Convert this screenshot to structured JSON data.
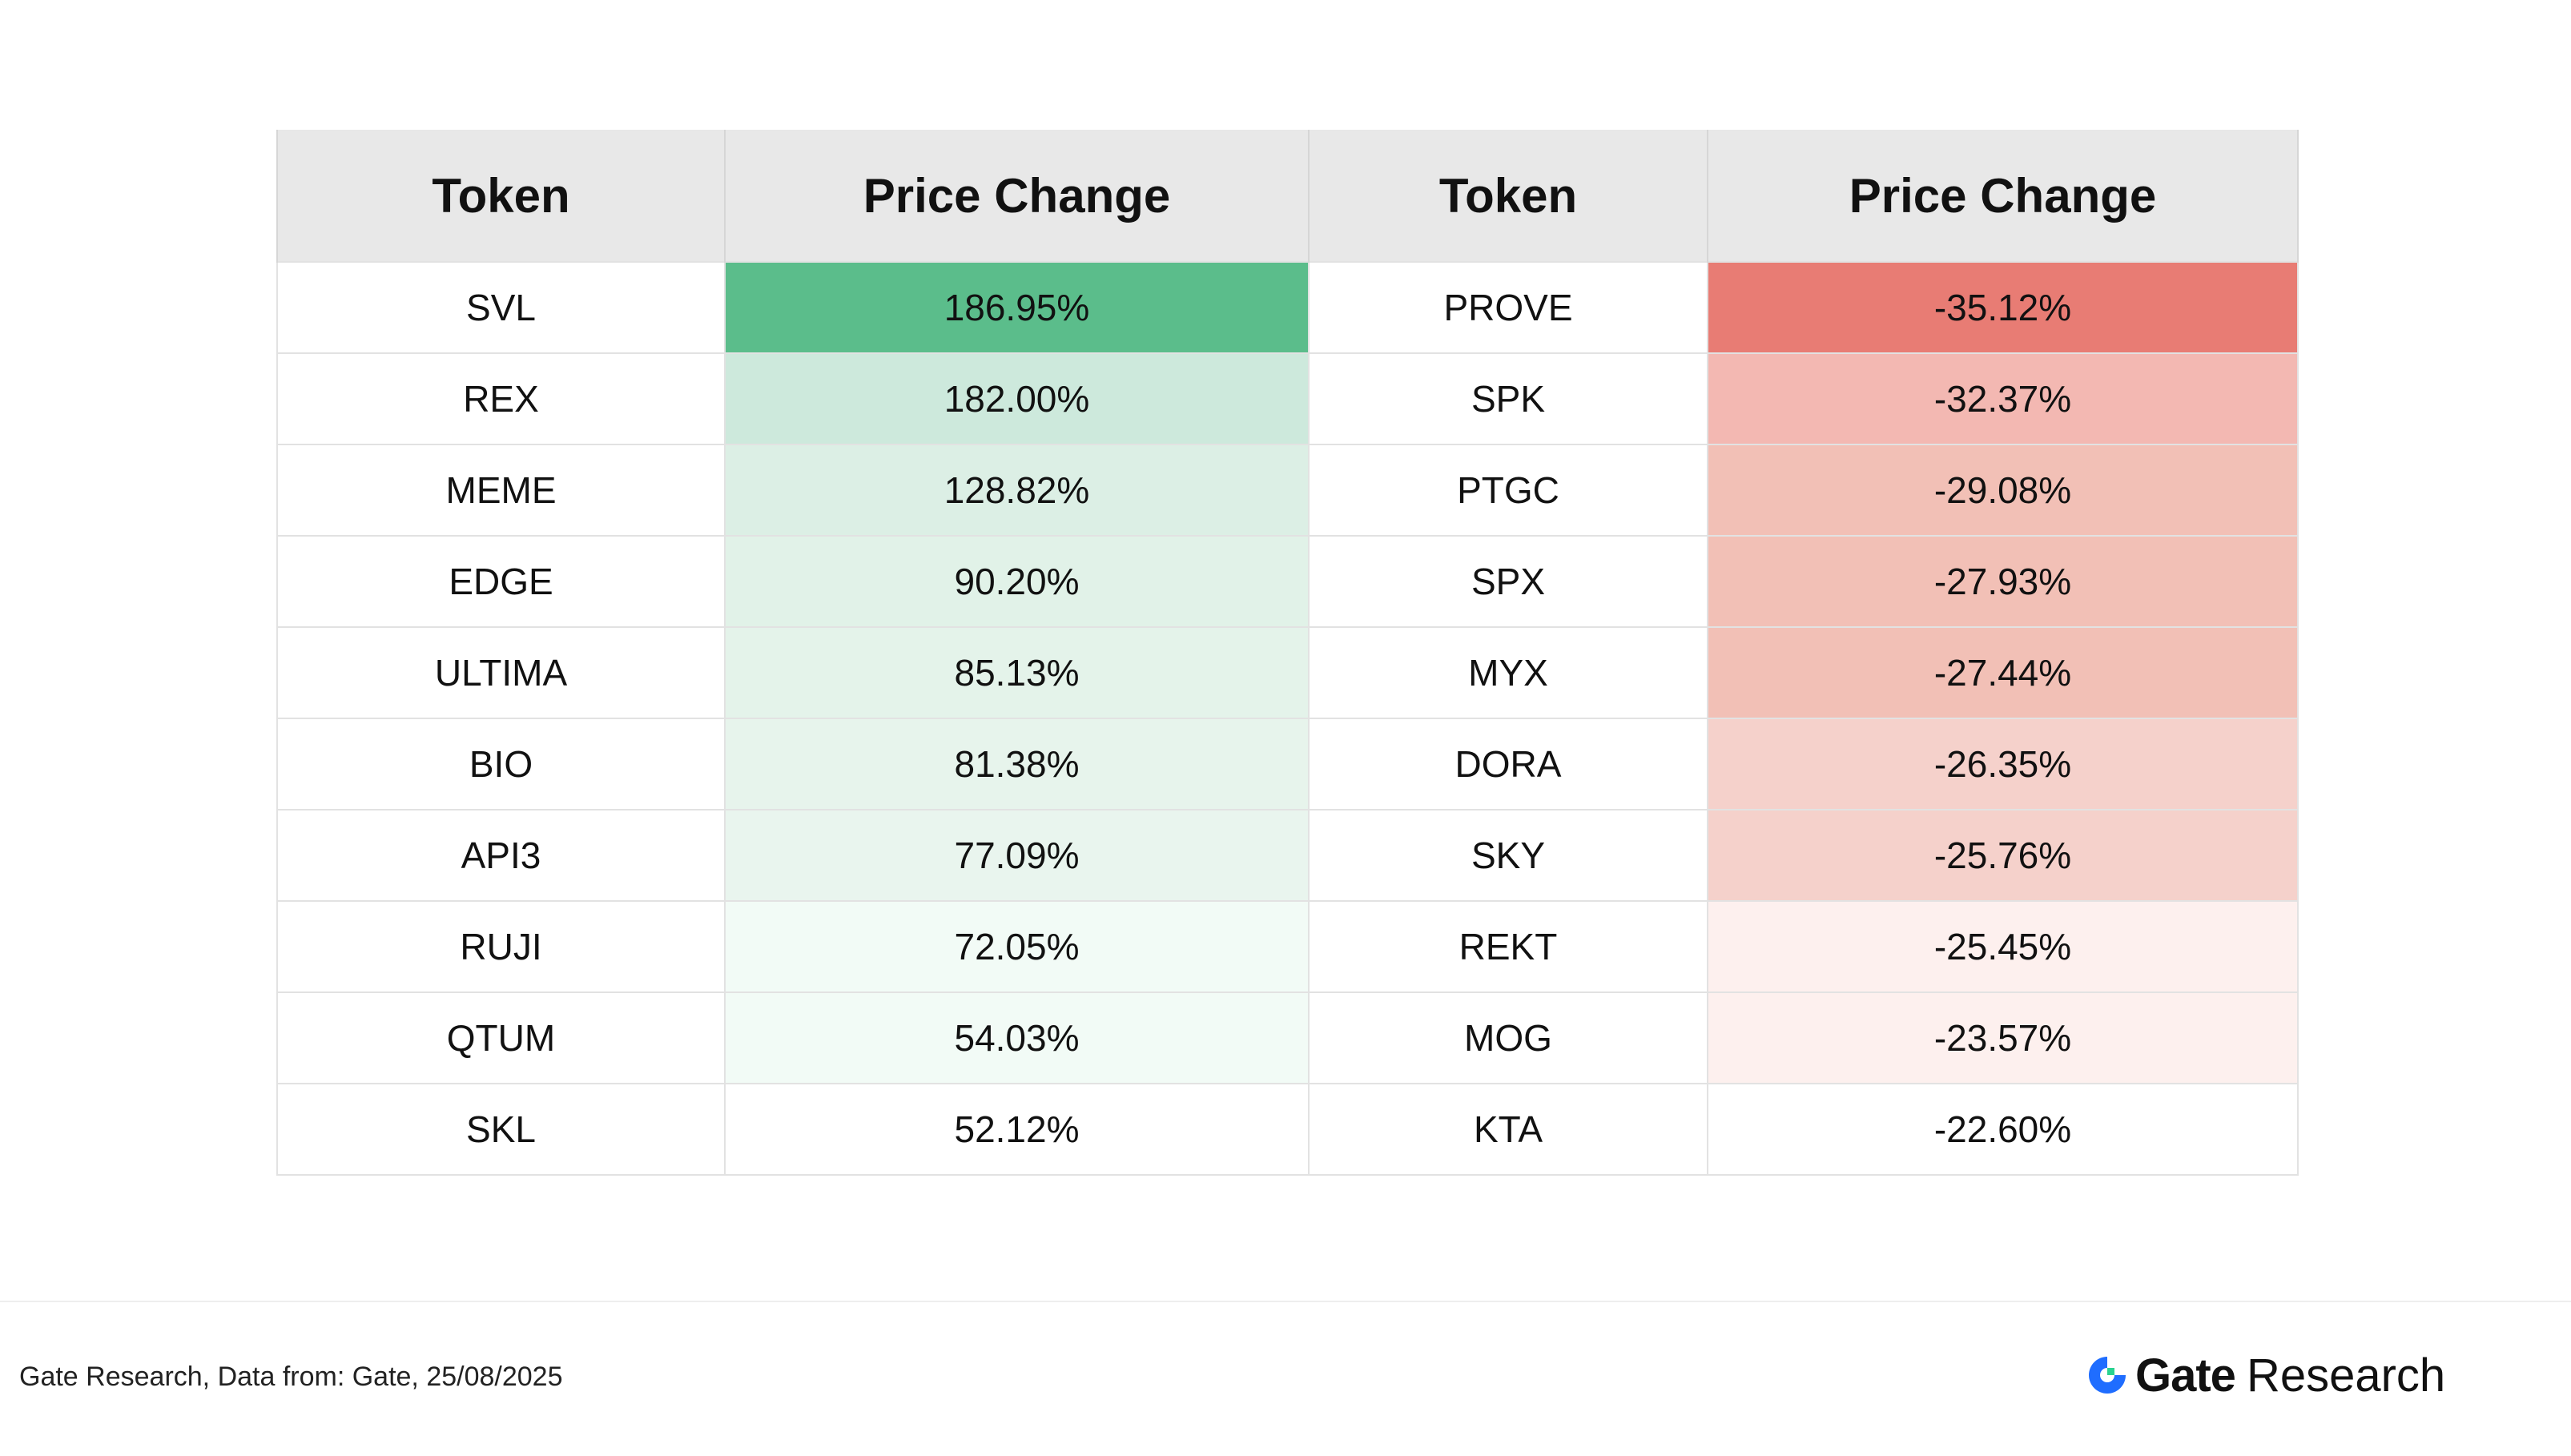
{
  "table": {
    "headers": [
      "Token",
      "Price Change",
      "Token",
      "Price Change"
    ],
    "gainers": [
      {
        "token": "SVL",
        "change": "186.95%",
        "fill": "#5bbd8b"
      },
      {
        "token": "REX",
        "change": "182.00%",
        "fill": "#cde9dc"
      },
      {
        "token": "MEME",
        "change": "128.82%",
        "fill": "#dcefe5"
      },
      {
        "token": "EDGE",
        "change": "90.20%",
        "fill": "#e1f2e8"
      },
      {
        "token": "ULTIMA",
        "change": "85.13%",
        "fill": "#e4f3ea"
      },
      {
        "token": "BIO",
        "change": "81.38%",
        "fill": "#e7f4ec"
      },
      {
        "token": "API3",
        "change": "77.09%",
        "fill": "#e9f5ee"
      },
      {
        "token": "RUJI",
        "change": "72.05%",
        "fill": "#f2fbf6"
      },
      {
        "token": "QTUM",
        "change": "54.03%",
        "fill": "#f2fbf6"
      },
      {
        "token": "SKL",
        "change": "52.12%",
        "fill": "#ffffff"
      }
    ],
    "losers": [
      {
        "token": "PROVE",
        "change": "-35.12%",
        "fill": "#e87c74"
      },
      {
        "token": "SPK",
        "change": "-32.37%",
        "fill": "#f3b8b2"
      },
      {
        "token": "PTGC",
        "change": "-29.08%",
        "fill": "#f2c0b6"
      },
      {
        "token": "SPX",
        "change": "-27.93%",
        "fill": "#f2c0b6"
      },
      {
        "token": "MYX",
        "change": "-27.44%",
        "fill": "#f2c0b6"
      },
      {
        "token": "DORA",
        "change": "-26.35%",
        "fill": "#f5d1cb"
      },
      {
        "token": "SKY",
        "change": "-25.76%",
        "fill": "#f5d1cb"
      },
      {
        "token": "REKT",
        "change": "-25.45%",
        "fill": "#fdf0ee"
      },
      {
        "token": "MOG",
        "change": "-23.57%",
        "fill": "#fdf0ee"
      },
      {
        "token": "KTA",
        "change": "-22.60%",
        "fill": "#ffffff"
      }
    ]
  },
  "footer": {
    "source": "Gate Research, Data from: Gate, 25/08/2025",
    "brand_name": "Gate",
    "brand_sub": "Research",
    "brand_icon": "gate-logo-icon",
    "brand_colors": {
      "blue": "#1f6dff",
      "green": "#29d391"
    }
  }
}
